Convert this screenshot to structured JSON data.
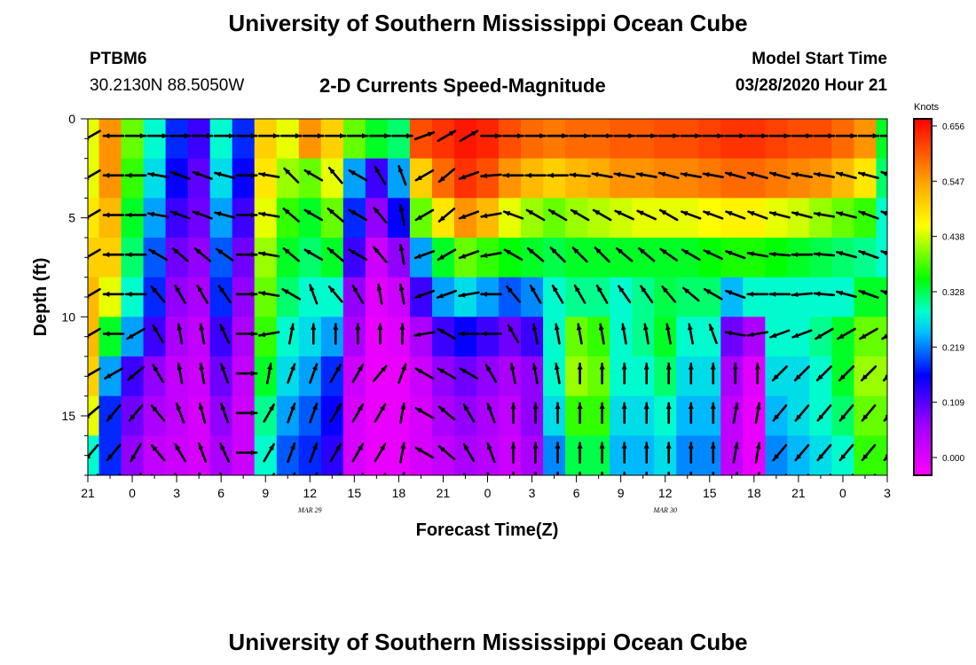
{
  "header": {
    "title": "University of Southern Mississippi Ocean Cube",
    "station": "PTBM6",
    "coordinates": "30.2130N 88.5050W",
    "chart_title": "2-D Currents Speed-Magnitude",
    "model_start_label": "Model Start Time",
    "model_start_value": "03/28/2020 Hour 21"
  },
  "footer": {
    "title": "University of Southern Mississippi Ocean Cube"
  },
  "chart_data": {
    "type": "heatmap",
    "title": "2-D Currents Speed-Magnitude",
    "xlabel": "Forecast Time(Z)",
    "ylabel": "Depth (ft)",
    "x_tick_labels": [
      "21",
      "0",
      "3",
      "6",
      "9",
      "12",
      "15",
      "18",
      "21",
      "0",
      "3",
      "6",
      "9",
      "12",
      "15",
      "18",
      "21",
      "0",
      "3"
    ],
    "x_date_labels": [
      {
        "label": "MAR 29",
        "at_tick": 5
      },
      {
        "label": "MAR 30",
        "at_tick": 13
      }
    ],
    "y_ticks": [
      0,
      5,
      10,
      15
    ],
    "ylim": [
      0,
      18
    ],
    "y_inverted": true,
    "colorbar": {
      "unit": "Knots",
      "ticks": [
        "0.656",
        "0.547",
        "0.438",
        "0.328",
        "0.219",
        "0.109",
        "0.000"
      ],
      "range": [
        0.0,
        0.656
      ]
    },
    "grid": false,
    "vector_overlay": true,
    "value_note": "speed magnitude in knots, columns = time at 1.5 h spacing (forecast hours 0-54), rows = depth levels",
    "time_hours": [
      0,
      1.5,
      3,
      4.5,
      6,
      7.5,
      9,
      10.5,
      12,
      13.5,
      15,
      16.5,
      18,
      19.5,
      21,
      22.5,
      24,
      25.5,
      27,
      28.5,
      30,
      31.5,
      33,
      34.5,
      36,
      37.5,
      39,
      40.5,
      42,
      43.5,
      45,
      46.5,
      48,
      49.5,
      51,
      52.5,
      54
    ],
    "depth_ft": [
      1,
      3,
      5,
      7,
      9,
      11,
      13,
      15,
      17
    ],
    "speed": [
      [
        0.45,
        0.55,
        0.4,
        0.3,
        0.2,
        0.15,
        0.3,
        0.2,
        0.5,
        0.45,
        0.55,
        0.5,
        0.4,
        0.35,
        0.33,
        0.6,
        0.62,
        0.64,
        0.63,
        0.6,
        0.58,
        0.57,
        0.58,
        0.58,
        0.59,
        0.59,
        0.6,
        0.6,
        0.61,
        0.62,
        0.62,
        0.61,
        0.6,
        0.6,
        0.58,
        0.55,
        0.35
      ],
      [
        0.45,
        0.55,
        0.38,
        0.28,
        0.18,
        0.13,
        0.28,
        0.18,
        0.48,
        0.42,
        0.4,
        0.45,
        0.25,
        0.15,
        0.25,
        0.5,
        0.58,
        0.62,
        0.6,
        0.55,
        0.52,
        0.5,
        0.52,
        0.53,
        0.55,
        0.55,
        0.56,
        0.56,
        0.57,
        0.58,
        0.58,
        0.57,
        0.56,
        0.55,
        0.52,
        0.48,
        0.33
      ],
      [
        0.48,
        0.52,
        0.35,
        0.25,
        0.15,
        0.12,
        0.25,
        0.15,
        0.45,
        0.38,
        0.35,
        0.4,
        0.2,
        0.1,
        0.18,
        0.4,
        0.48,
        0.55,
        0.52,
        0.45,
        0.42,
        0.4,
        0.42,
        0.43,
        0.44,
        0.45,
        0.45,
        0.45,
        0.46,
        0.47,
        0.47,
        0.45,
        0.44,
        0.42,
        0.4,
        0.38,
        0.3
      ],
      [
        0.5,
        0.5,
        0.33,
        0.22,
        0.12,
        0.1,
        0.22,
        0.12,
        0.42,
        0.35,
        0.33,
        0.35,
        0.15,
        0.05,
        0.1,
        0.25,
        0.35,
        0.4,
        0.38,
        0.36,
        0.35,
        0.34,
        0.35,
        0.35,
        0.35,
        0.35,
        0.35,
        0.35,
        0.36,
        0.37,
        0.37,
        0.36,
        0.35,
        0.34,
        0.33,
        0.32,
        0.3
      ],
      [
        0.52,
        0.45,
        0.3,
        0.2,
        0.1,
        0.08,
        0.2,
        0.1,
        0.4,
        0.33,
        0.3,
        0.3,
        0.1,
        0.03,
        0.05,
        0.15,
        0.25,
        0.28,
        0.25,
        0.22,
        0.24,
        0.3,
        0.32,
        0.32,
        0.3,
        0.32,
        0.34,
        0.33,
        0.33,
        0.26,
        0.3,
        0.3,
        0.3,
        0.3,
        0.3,
        0.35,
        0.35
      ],
      [
        0.52,
        0.35,
        0.25,
        0.15,
        0.08,
        0.06,
        0.15,
        0.08,
        0.38,
        0.3,
        0.28,
        0.25,
        0.08,
        0.02,
        0.03,
        0.08,
        0.15,
        0.18,
        0.15,
        0.12,
        0.15,
        0.3,
        0.4,
        0.38,
        0.3,
        0.32,
        0.35,
        0.3,
        0.3,
        0.12,
        0.08,
        0.3,
        0.3,
        0.32,
        0.35,
        0.4,
        0.4
      ],
      [
        0.5,
        0.25,
        0.15,
        0.1,
        0.06,
        0.05,
        0.12,
        0.06,
        0.35,
        0.28,
        0.25,
        0.2,
        0.05,
        0.02,
        0.02,
        0.05,
        0.1,
        0.12,
        0.1,
        0.08,
        0.1,
        0.3,
        0.42,
        0.4,
        0.3,
        0.3,
        0.33,
        0.28,
        0.28,
        0.08,
        0.03,
        0.28,
        0.28,
        0.3,
        0.35,
        0.42,
        0.42
      ],
      [
        0.45,
        0.2,
        0.12,
        0.08,
        0.06,
        0.04,
        0.1,
        0.05,
        0.32,
        0.25,
        0.22,
        0.18,
        0.04,
        0.02,
        0.02,
        0.04,
        0.08,
        0.1,
        0.08,
        0.06,
        0.1,
        0.28,
        0.38,
        0.38,
        0.28,
        0.28,
        0.3,
        0.26,
        0.26,
        0.06,
        0.02,
        0.26,
        0.28,
        0.3,
        0.33,
        0.4,
        0.4
      ],
      [
        0.3,
        0.2,
        0.1,
        0.06,
        0.05,
        0.04,
        0.08,
        0.05,
        0.3,
        0.22,
        0.2,
        0.16,
        0.04,
        0.02,
        0.02,
        0.04,
        0.06,
        0.08,
        0.07,
        0.05,
        0.08,
        0.24,
        0.34,
        0.34,
        0.26,
        0.26,
        0.28,
        0.24,
        0.24,
        0.06,
        0.02,
        0.24,
        0.26,
        0.28,
        0.3,
        0.38,
        0.38
      ]
    ],
    "vector_rows_ft": [
      0.5,
      2.5,
      4.5,
      6.5,
      8.5,
      10.5,
      12.5,
      14.5,
      16.5,
      18
    ],
    "vector_dir_deg": [
      [
        210,
        180,
        0,
        0,
        0,
        0,
        0,
        0,
        0,
        0,
        0,
        0,
        0,
        0,
        0,
        20,
        30,
        30,
        0,
        0,
        0,
        0,
        0,
        0,
        0,
        0,
        0,
        0,
        0,
        0,
        0,
        0,
        0,
        0,
        0,
        0,
        0
      ],
      [
        210,
        180,
        180,
        170,
        160,
        160,
        165,
        0,
        170,
        135,
        150,
        130,
        150,
        120,
        110,
        210,
        220,
        200,
        185,
        180,
        180,
        180,
        175,
        170,
        170,
        170,
        165,
        170,
        170,
        165,
        165,
        165,
        170,
        170,
        165,
        165,
        160
      ],
      [
        210,
        180,
        180,
        170,
        160,
        160,
        165,
        0,
        170,
        140,
        150,
        140,
        150,
        130,
        100,
        210,
        220,
        200,
        190,
        160,
        150,
        150,
        150,
        150,
        155,
        155,
        150,
        160,
        160,
        160,
        160,
        165,
        165,
        170,
        165,
        160,
        160
      ],
      [
        210,
        180,
        180,
        150,
        140,
        140,
        145,
        0,
        170,
        140,
        150,
        140,
        150,
        130,
        100,
        200,
        210,
        200,
        190,
        150,
        140,
        135,
        135,
        135,
        140,
        140,
        145,
        150,
        155,
        160,
        170,
        175,
        180,
        175,
        165,
        160,
        160
      ],
      [
        210,
        180,
        180,
        130,
        120,
        120,
        125,
        0,
        170,
        150,
        110,
        130,
        120,
        100,
        100,
        200,
        200,
        190,
        180,
        130,
        120,
        120,
        120,
        120,
        125,
        125,
        130,
        140,
        150,
        160,
        180,
        180,
        185,
        175,
        165,
        160,
        160
      ],
      [
        210,
        180,
        210,
        120,
        100,
        100,
        115,
        0,
        190,
        80,
        90,
        90,
        90,
        90,
        90,
        190,
        150,
        180,
        180,
        120,
        100,
        100,
        100,
        100,
        100,
        100,
        100,
        100,
        110,
        170,
        190,
        200,
        200,
        210,
        210,
        210,
        210
      ],
      [
        210,
        210,
        220,
        120,
        100,
        100,
        110,
        0,
        80,
        70,
        70,
        60,
        60,
        50,
        70,
        150,
        150,
        150,
        120,
        100,
        100,
        100,
        90,
        90,
        90,
        90,
        90,
        90,
        90,
        90,
        90,
        225,
        225,
        225,
        225,
        225,
        225
      ],
      [
        220,
        230,
        230,
        130,
        110,
        105,
        110,
        0,
        60,
        70,
        70,
        60,
        60,
        60,
        80,
        150,
        140,
        120,
        110,
        90,
        90,
        90,
        90,
        90,
        90,
        90,
        90,
        90,
        90,
        80,
        80,
        230,
        230,
        230,
        230,
        230,
        230
      ],
      [
        230,
        230,
        240,
        130,
        120,
        110,
        115,
        0,
        60,
        70,
        70,
        60,
        60,
        60,
        80,
        150,
        140,
        120,
        110,
        90,
        90,
        90,
        90,
        90,
        90,
        90,
        90,
        90,
        90,
        80,
        80,
        230,
        230,
        230,
        230,
        230,
        230
      ],
      [
        230,
        230,
        240,
        130,
        120,
        110,
        115,
        0,
        60,
        70,
        70,
        60,
        60,
        60,
        80,
        150,
        140,
        120,
        110,
        90,
        90,
        90,
        90,
        90,
        90,
        90,
        90,
        90,
        90,
        80,
        80,
        230,
        230,
        230,
        230,
        230,
        230
      ]
    ]
  }
}
